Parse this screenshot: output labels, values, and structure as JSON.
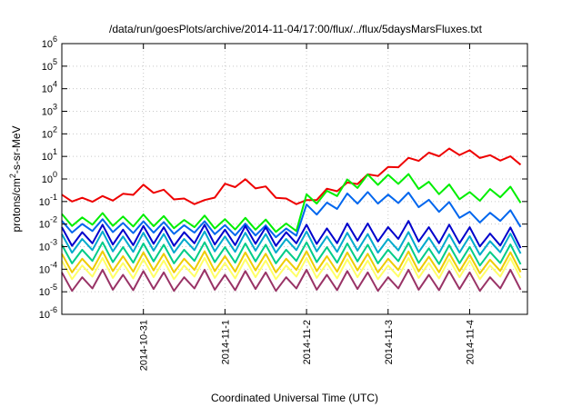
{
  "chart_data": {
    "type": "line",
    "title": "/data/run/goesPlots/archive/2014-11-04/17:00/flux/../flux/5daysMarsFluxes.txt",
    "xlabel": "Coordinated Universal Time (UTC)",
    "ylabel": {
      "prefix": "protons/cm",
      "superscript": "2",
      "suffix": "-s-sr-MeV"
    },
    "y_scale": "log",
    "ylim": [
      1e-06,
      1000000.0
    ],
    "y_ticks": [
      {
        "value": 1e-06,
        "base": "10",
        "exp": "-6"
      },
      {
        "value": 1e-05,
        "base": "10",
        "exp": "-5"
      },
      {
        "value": 0.0001,
        "base": "10",
        "exp": "-4"
      },
      {
        "value": 0.001,
        "base": "10",
        "exp": "-3"
      },
      {
        "value": 0.01,
        "base": "10",
        "exp": "-2"
      },
      {
        "value": 0.1,
        "base": "10",
        "exp": "-1"
      },
      {
        "value": 1.0,
        "base": "10",
        "exp": "0"
      },
      {
        "value": 10.0,
        "base": "10",
        "exp": "1"
      },
      {
        "value": 100.0,
        "base": "10",
        "exp": "2"
      },
      {
        "value": 1000.0,
        "base": "10",
        "exp": "3"
      },
      {
        "value": 10000.0,
        "base": "10",
        "exp": "4"
      },
      {
        "value": 100000.0,
        "base": "10",
        "exp": "5"
      },
      {
        "value": 1000000.0,
        "base": "10",
        "exp": "6"
      }
    ],
    "xlim": [
      "2014-10-30T00:00",
      "2014-11-04T17:00"
    ],
    "x_ticks": [
      "2014-10-31",
      "2014-11-1",
      "2014-11-2",
      "2014-11-3",
      "2014-11-4"
    ],
    "x_tick_positions": [
      "2014-10-31T00:00",
      "2014-11-01T00:00",
      "2014-11-02T00:00",
      "2014-11-03T00:00",
      "2014-11-04T00:00"
    ],
    "grid": true,
    "series": [
      {
        "color": "#ee0000",
        "x": [
          "2014-10-30T00:00",
          "2014-10-30T06:00",
          "2014-10-30T12:00",
          "2014-10-30T18:00",
          "2014-10-31T00:00",
          "2014-10-31T06:00",
          "2014-10-31T12:00",
          "2014-10-31T18:00",
          "2014-11-01T00:00",
          "2014-11-01T06:00",
          "2014-11-01T12:00",
          "2014-11-01T18:00",
          "2014-11-02T00:00",
          "2014-11-02T06:00",
          "2014-11-02T12:00",
          "2014-11-02T18:00",
          "2014-11-03T00:00",
          "2014-11-03T06:00",
          "2014-11-03T12:00",
          "2014-11-03T18:00",
          "2014-11-04T00:00",
          "2014-11-04T06:00",
          "2014-11-04T12:00",
          "2014-11-04T17:00"
        ],
        "values": [
          0.15,
          0.13,
          0.12,
          0.18,
          0.4,
          0.25,
          0.12,
          0.08,
          0.5,
          0.7,
          0.35,
          0.12,
          0.08,
          0.3,
          0.5,
          1.2,
          3.0,
          6.0,
          12,
          16,
          14,
          10,
          7,
          5
        ]
      },
      {
        "color": "#00ee00",
        "x": [
          "2014-10-30T00:00",
          "2014-10-30T12:00",
          "2014-10-31T00:00",
          "2014-10-31T12:00",
          "2014-11-01T00:00",
          "2014-11-01T12:00",
          "2014-11-01T21:00",
          "2014-11-01T22:00",
          "2014-11-02T06:00",
          "2014-11-02T12:00",
          "2014-11-02T18:00",
          "2014-11-03T00:00",
          "2014-11-03T06:00",
          "2014-11-03T12:00",
          "2014-11-03T18:00",
          "2014-11-04T00:00",
          "2014-11-04T06:00",
          "2014-11-04T12:00",
          "2014-11-04T17:00"
        ],
        "values": [
          0.016,
          0.015,
          0.014,
          0.012,
          0.011,
          0.009,
          0.008,
          0.08,
          0.2,
          0.5,
          0.9,
          1.2,
          0.8,
          0.5,
          0.3,
          0.15,
          0.28,
          0.22,
          0.12
        ]
      },
      {
        "color": "#0066ee",
        "x": [
          "2014-10-30T00:00",
          "2014-10-30T12:00",
          "2014-10-31T00:00",
          "2014-10-31T12:00",
          "2014-11-01T00:00",
          "2014-11-01T12:00",
          "2014-11-01T21:00",
          "2014-11-01T22:00",
          "2014-11-02T06:00",
          "2014-11-02T12:00",
          "2014-11-02T18:00",
          "2014-11-03T00:00",
          "2014-11-03T06:00",
          "2014-11-03T12:00",
          "2014-11-03T18:00",
          "2014-11-04T00:00",
          "2014-11-04T06:00",
          "2014-11-04T12:00",
          "2014-11-04T17:00"
        ],
        "values": [
          0.008,
          0.008,
          0.007,
          0.007,
          0.006,
          0.005,
          0.005,
          0.03,
          0.06,
          0.12,
          0.15,
          0.16,
          0.12,
          0.08,
          0.05,
          0.02,
          0.025,
          0.02,
          0.01
        ]
      },
      {
        "color": "#0000cc",
        "x": [
          "2014-10-30T00:00",
          "2014-10-31T00:00",
          "2014-11-01T00:00",
          "2014-11-02T00:00",
          "2014-11-03T00:00",
          "2014-11-04T00:00",
          "2014-11-04T17:00"
        ],
        "values": [
          0.003,
          0.003,
          0.003,
          0.003,
          0.005,
          0.003,
          0.002
        ]
      },
      {
        "color": "#00aacc",
        "x": [
          "2014-10-30T00:00",
          "2014-10-31T00:00",
          "2014-11-01T00:00",
          "2014-11-02T00:00",
          "2014-11-03T00:00",
          "2014-11-04T00:00",
          "2014-11-04T17:00"
        ],
        "values": [
          0.0015,
          0.0015,
          0.0015,
          0.0015,
          0.0015,
          0.0012,
          0.0012
        ]
      },
      {
        "color": "#00cc88",
        "x": [
          "2014-10-30T00:00",
          "2014-10-31T00:00",
          "2014-11-01T00:00",
          "2014-11-02T00:00",
          "2014-11-03T00:00",
          "2014-11-04T00:00",
          "2014-11-04T17:00"
        ],
        "values": [
          0.0005,
          0.0005,
          0.0005,
          0.0005,
          0.0005,
          0.0004,
          0.0004
        ]
      },
      {
        "color": "#eecc00",
        "x": [
          "2014-10-30T00:00",
          "2014-10-31T00:00",
          "2014-11-01T00:00",
          "2014-11-02T00:00",
          "2014-11-03T00:00",
          "2014-11-04T00:00",
          "2014-11-04T17:00"
        ],
        "values": [
          0.0002,
          0.0002,
          0.0002,
          0.0002,
          0.0002,
          0.00018,
          0.00018
        ]
      },
      {
        "color": "#ffff66",
        "x": [
          "2014-10-30T00:00",
          "2014-10-31T00:00",
          "2014-11-01T00:00",
          "2014-11-02T00:00",
          "2014-11-03T00:00",
          "2014-11-04T00:00",
          "2014-11-04T17:00"
        ],
        "values": [
          0.0001,
          0.0001,
          0.0001,
          0.0001,
          0.0001,
          0.0001,
          0.0001
        ]
      },
      {
        "color": "#993366",
        "x": [
          "2014-10-30T00:00",
          "2014-10-31T00:00",
          "2014-11-01T00:00",
          "2014-11-02T00:00",
          "2014-11-03T00:00",
          "2014-11-04T00:00",
          "2014-11-04T17:00"
        ],
        "values": [
          3e-05,
          3e-05,
          3e-05,
          3e-05,
          3e-05,
          3e-05,
          3e-05
        ]
      }
    ]
  }
}
